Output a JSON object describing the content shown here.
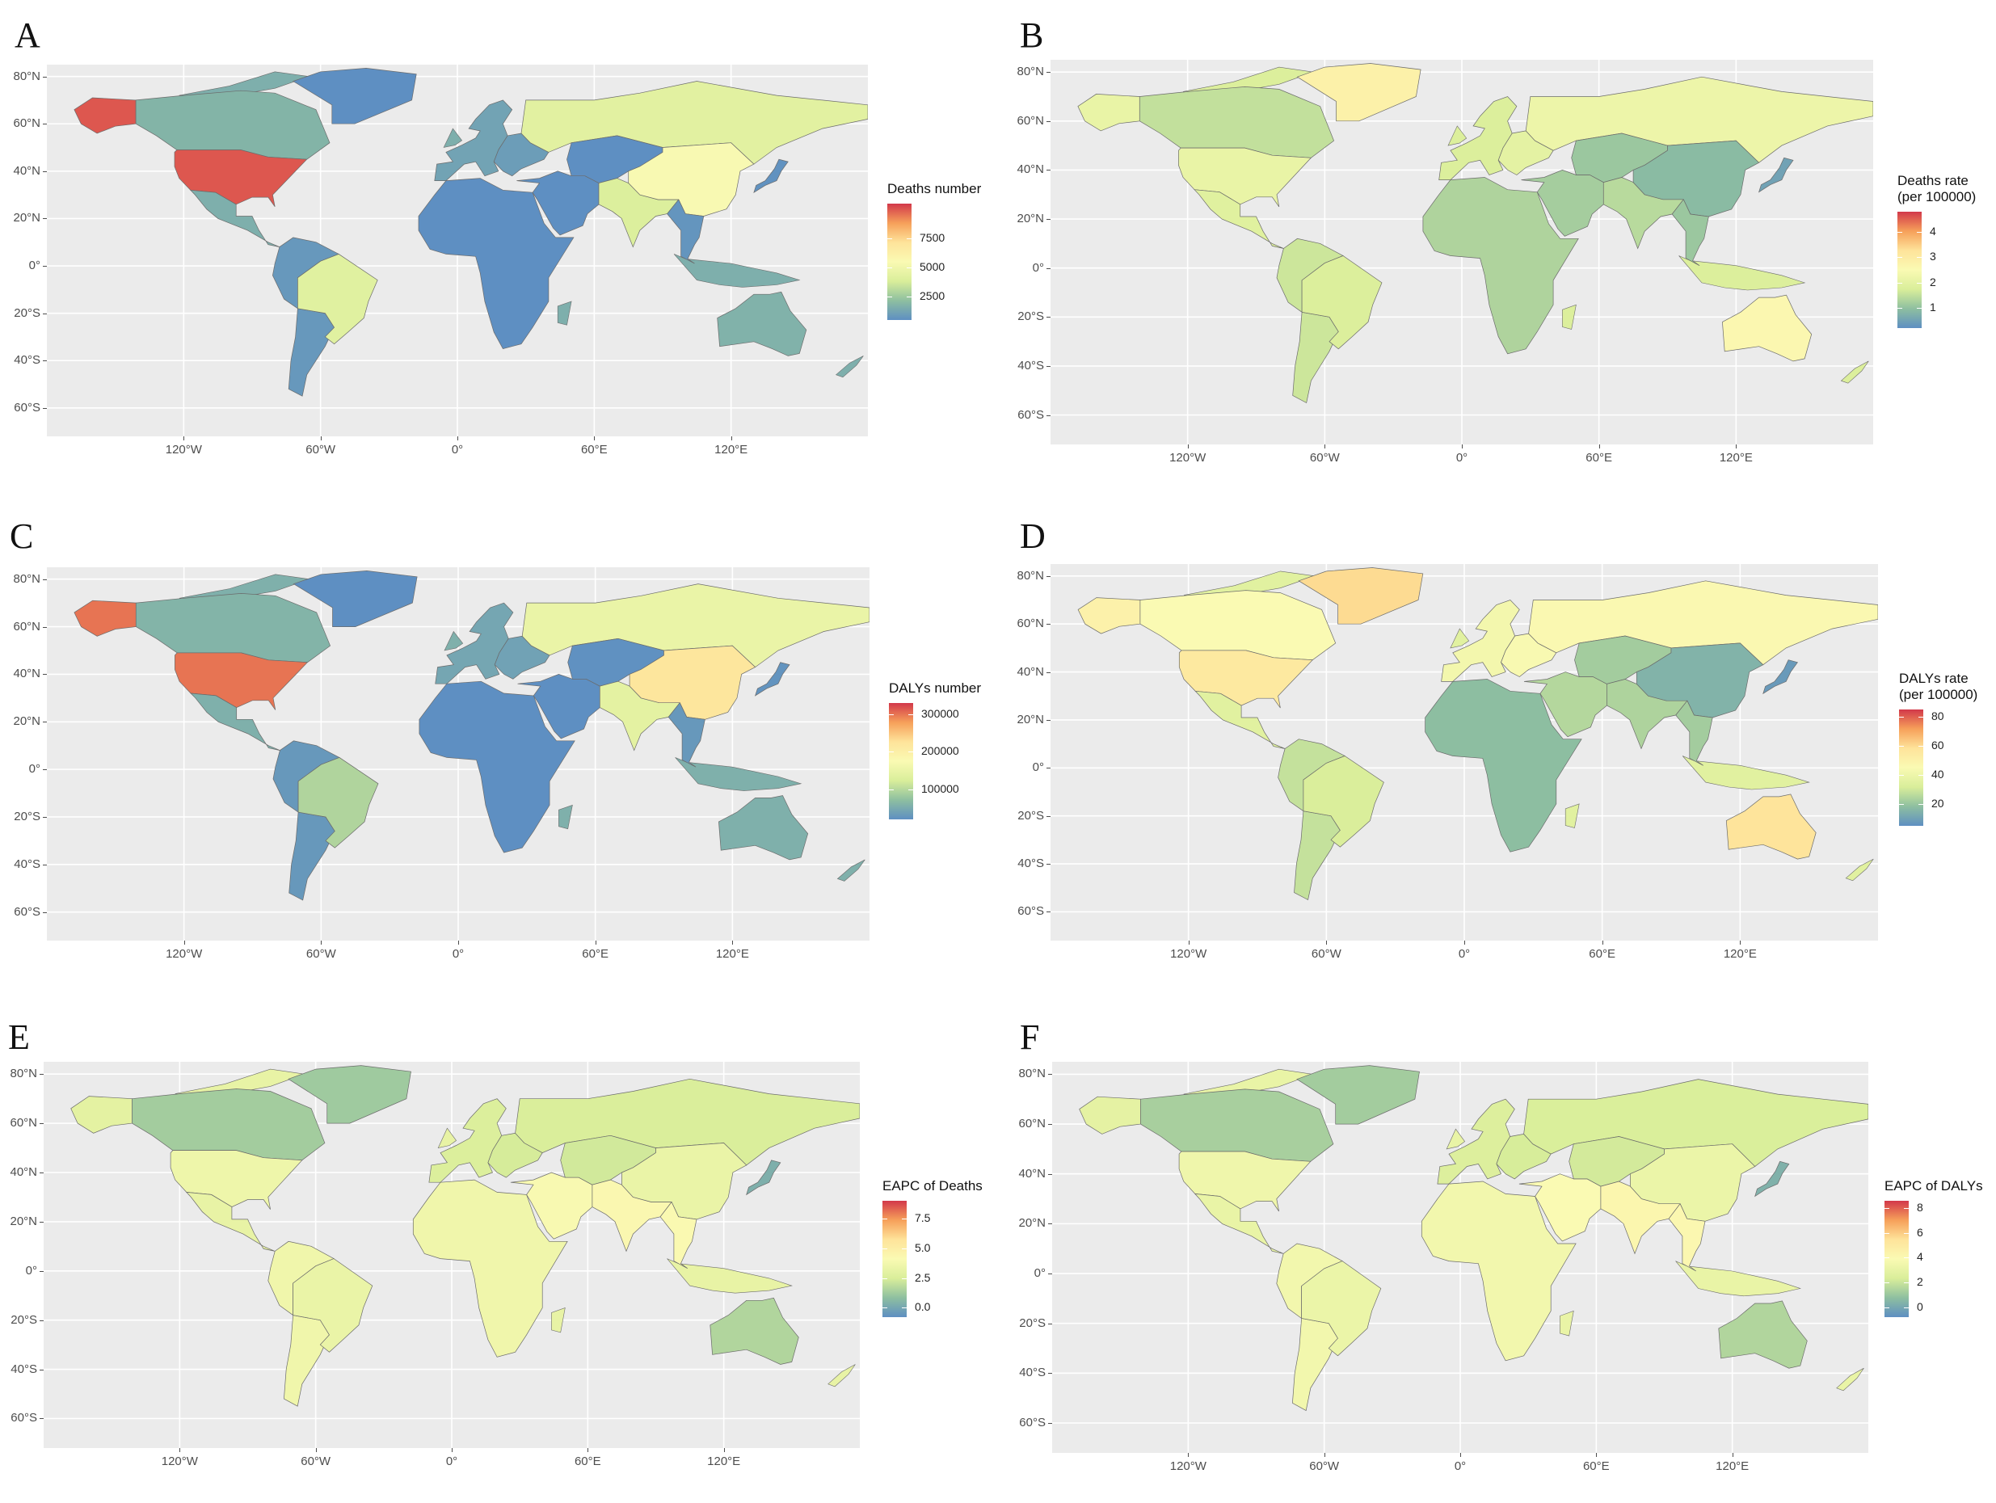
{
  "figure": {
    "lat_ticks": [
      "80°N",
      "60°N",
      "40°N",
      "20°N",
      "0°",
      "20°S",
      "40°S",
      "60°S"
    ],
    "lat_values": [
      80,
      60,
      40,
      20,
      0,
      -20,
      -40,
      -60
    ],
    "lon_ticks": [
      "120°W",
      "60°W",
      "0°",
      "60°E",
      "120°E"
    ],
    "lon_values": [
      -120,
      -60,
      0,
      60,
      120
    ],
    "palette": [
      "#5e8fc2",
      "#8ebfa0",
      "#d9ee9a",
      "#fafab3",
      "#fee39a",
      "#f6a05a",
      "#d2384a"
    ]
  },
  "panels": [
    {
      "letter": "A",
      "legend_title": "Deaths number",
      "legend_ticks": [
        "7500",
        "5000",
        "2500"
      ],
      "legend_tick_values": [
        7500,
        5000,
        2500
      ],
      "legend_range": [
        500,
        10500
      ],
      "regions": {
        "north_america_usa": 10000,
        "canada": 1800,
        "alaska": 10000,
        "greenland": 300,
        "mexico_central": 1600,
        "south_america": 800,
        "brazil": 4200,
        "europe_west": 1200,
        "europe_east": 1000,
        "russia": 4300,
        "africa": 500,
        "middle_east": 500,
        "central_asia": 500,
        "india": 4000,
        "china": 5400,
        "southeast_asia": 700,
        "japan": 600,
        "australia": 1700
      }
    },
    {
      "letter": "B",
      "legend_title": "Deaths rate\n(per 100000)",
      "legend_ticks": [
        "4",
        "3",
        "2",
        "1"
      ],
      "legend_tick_values": [
        4,
        3,
        2,
        1
      ],
      "legend_range": [
        0.2,
        4.8
      ],
      "regions": {
        "north_america_usa": 2.1,
        "canada": 1.5,
        "alaska": 2.1,
        "greenland": 2.8,
        "mexico_central": 1.9,
        "south_america": 1.6,
        "brazil": 1.8,
        "europe_west": 1.8,
        "europe_east": 2.0,
        "russia": 2.2,
        "africa": 1.3,
        "middle_east": 1.2,
        "central_asia": 1.1,
        "india": 1.4,
        "china": 0.9,
        "southeast_asia": 1.1,
        "japan": 0.5,
        "australia": 2.6
      }
    },
    {
      "letter": "C",
      "legend_title": "DALYs number",
      "legend_ticks": [
        "300000",
        "200000",
        "100000"
      ],
      "legend_tick_values": [
        300000,
        200000,
        100000
      ],
      "legend_range": [
        20000,
        330000
      ],
      "regions": {
        "north_america_usa": 300000,
        "canada": 60000,
        "alaska": 300000,
        "greenland": 10000,
        "mexico_central": 55000,
        "south_america": 30000,
        "brazil": 95000,
        "europe_west": 45000,
        "europe_east": 40000,
        "russia": 150000,
        "africa": 20000,
        "middle_east": 20000,
        "central_asia": 22000,
        "india": 140000,
        "china": 220000,
        "southeast_asia": 30000,
        "japan": 25000,
        "australia": 55000
      }
    },
    {
      "letter": "D",
      "legend_title": "DALYs rate\n(per 100000)",
      "legend_ticks": [
        "80",
        "60",
        "40",
        "20"
      ],
      "legend_tick_values": [
        80,
        60,
        40,
        20
      ],
      "legend_range": [
        5,
        85
      ],
      "regions": {
        "north_america_usa": 55,
        "canada": 45,
        "alaska": 50,
        "greenland": 60,
        "mexico_central": 35,
        "south_america": 28,
        "brazil": 32,
        "europe_west": 42,
        "europe_east": 44,
        "russia": 46,
        "africa": 18,
        "middle_east": 25,
        "central_asia": 22,
        "india": 24,
        "china": 15,
        "southeast_asia": 22,
        "japan": 8,
        "australia": 58
      }
    },
    {
      "letter": "E",
      "legend_title": "EAPC of Deaths",
      "legend_ticks": [
        "7.5",
        "5.0",
        "2.5",
        "0.0"
      ],
      "legend_tick_values": [
        7.5,
        5.0,
        2.5,
        0.0
      ],
      "legend_range": [
        -0.8,
        9.0
      ],
      "regions": {
        "north_america_usa": 3.5,
        "canada": 1.3,
        "alaska": 3.0,
        "greenland": 1.2,
        "mexico_central": 3.2,
        "south_america": 3.6,
        "brazil": 3.3,
        "europe_west": 2.6,
        "europe_east": 2.4,
        "russia": 2.5,
        "africa": 3.6,
        "middle_east": 4.0,
        "central_asia": 2.3,
        "india": 4.3,
        "china": 3.3,
        "southeast_asia": 4.2,
        "japan": 0.3,
        "australia": 1.6
      }
    },
    {
      "letter": "F",
      "legend_title": "EAPC of DALYs",
      "legend_ticks": [
        "8",
        "6",
        "4",
        "2",
        "0"
      ],
      "legend_tick_values": [
        8,
        6,
        4,
        2,
        0
      ],
      "legend_range": [
        -0.8,
        8.6
      ],
      "regions": {
        "north_america_usa": 3.4,
        "canada": 1.3,
        "alaska": 2.9,
        "greenland": 1.2,
        "mexico_central": 3.1,
        "south_america": 3.5,
        "brazil": 3.2,
        "europe_west": 2.5,
        "europe_east": 2.3,
        "russia": 2.4,
        "africa": 3.5,
        "middle_east": 3.9,
        "central_asia": 2.2,
        "india": 4.2,
        "china": 3.2,
        "southeast_asia": 4.1,
        "japan": 0.3,
        "australia": 1.5
      }
    }
  ]
}
